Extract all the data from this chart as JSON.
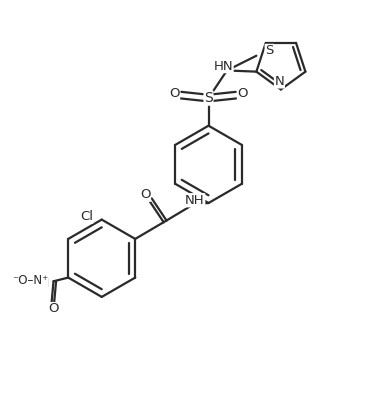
{
  "bg_color": "#ffffff",
  "line_color": "#2a2a2a",
  "text_color": "#2a2a2a",
  "figsize": [
    3.77,
    3.95
  ],
  "dpi": 100,
  "bond_lw": 1.6,
  "font_size": 9.5,
  "xlim": [
    0,
    10
  ],
  "ylim": [
    0,
    10.5
  ]
}
